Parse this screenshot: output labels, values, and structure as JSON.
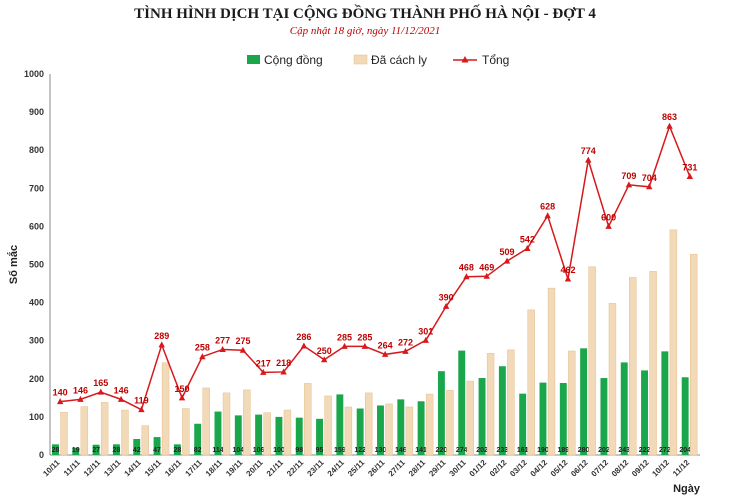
{
  "chart_data": {
    "type": "bar",
    "title": "TÌNH HÌNH DỊCH TẠI CỘNG ĐỒNG THÀNH PHỐ HÀ NỘI - ĐỢT 4",
    "subtitle": "Cập nhật 18 giờ, ngày 11/12/2021",
    "xlabel": "Ngày",
    "ylabel": "Số mắc",
    "ylim": [
      0,
      1000
    ],
    "yticks": [
      0,
      100,
      200,
      300,
      400,
      500,
      600,
      700,
      800,
      900,
      1000
    ],
    "legend_position": "top-center",
    "categories": [
      "10/11",
      "11/11",
      "12/11",
      "13/11",
      "14/11",
      "15/11",
      "16/11",
      "17/11",
      "18/11",
      "19/11",
      "20/11",
      "21/11",
      "22/11",
      "23/11",
      "24/11",
      "25/11",
      "26/11",
      "27/11",
      "28/11",
      "29/11",
      "30/11",
      "01/12",
      "02/12",
      "03/12",
      "04/12",
      "05/12",
      "06/12",
      "07/12",
      "08/12",
      "09/12",
      "10/12",
      "11/12"
    ],
    "series": [
      {
        "name": "Cộng đồng",
        "kind": "bar",
        "color": "#1aa64a",
        "values": [
          28,
          19,
          27,
          28,
          42,
          47,
          28,
          82,
          114,
          104,
          106,
          100,
          98,
          95,
          159,
          122,
          130,
          146,
          141,
          220,
          274,
          202,
          233,
          161,
          190,
          189,
          280,
          202,
          243,
          222,
          272,
          204
        ]
      },
      {
        "name": "Đã cách ly",
        "kind": "bar",
        "color": "#f2d9b8",
        "values": [
          112,
          127,
          138,
          118,
          77,
          242,
          122,
          176,
          163,
          171,
          111,
          118,
          188,
          155,
          126,
          163,
          134,
          126,
          160,
          170,
          194,
          267,
          276,
          381,
          438,
          273,
          494,
          398,
          466,
          482,
          591,
          527
        ]
      },
      {
        "name": "Tổng",
        "kind": "line",
        "color": "#d7191c",
        "values": [
          140,
          146,
          165,
          146,
          119,
          289,
          150,
          258,
          277,
          275,
          217,
          218,
          286,
          250,
          285,
          285,
          264,
          272,
          301,
          390,
          468,
          469,
          509,
          542,
          628,
          462,
          774,
          600,
          709,
          704,
          863,
          731
        ]
      }
    ]
  }
}
